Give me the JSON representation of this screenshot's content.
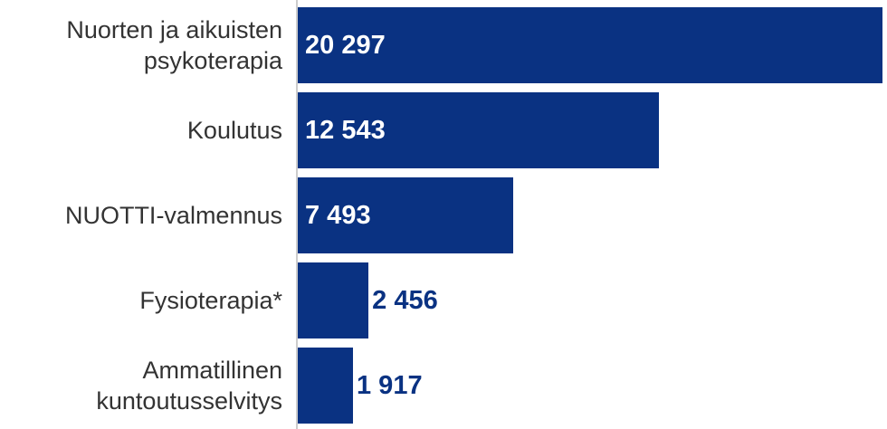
{
  "chart_data": {
    "type": "bar",
    "orientation": "horizontal",
    "categories": [
      "Nuorten ja aikuisten psykoterapia",
      "Koulutus",
      "NUOTTI-valmennus",
      "Fysioterapia*",
      "Ammatillinen kuntoutusselvitys"
    ],
    "values": [
      20297,
      12543,
      7493,
      2456,
      1917
    ],
    "value_labels": [
      "20 297",
      "12 543",
      "7 493",
      "2 456",
      "1 917"
    ],
    "color": "#0a3282"
  }
}
